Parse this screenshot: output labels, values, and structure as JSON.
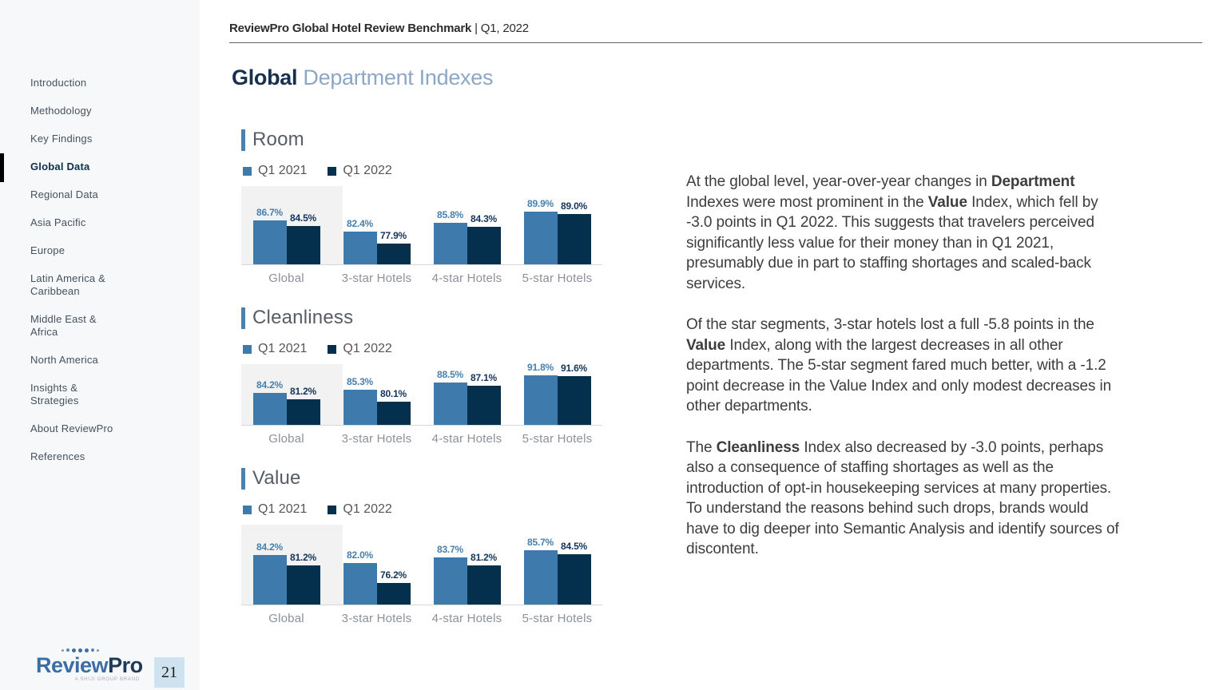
{
  "header": {
    "title": "ReviewPro Global Hotel Review Benchmark ",
    "subtitle": "| Q1, 2022"
  },
  "page_title": {
    "bold": "Global",
    "light": " Department Indexes"
  },
  "sidebar": {
    "items": [
      {
        "label": "Introduction",
        "active": false
      },
      {
        "label": "Methodology",
        "active": false
      },
      {
        "label": "Key Findings",
        "active": false
      },
      {
        "label": "Global Data",
        "active": true
      },
      {
        "label": "Regional Data",
        "active": false
      },
      {
        "label": "Asia Pacific",
        "active": false
      },
      {
        "label": "Europe",
        "active": false
      },
      {
        "label": "Latin America & Caribbean",
        "active": false
      },
      {
        "label": "Middle East & Africa",
        "active": false
      },
      {
        "label": "North America",
        "active": false
      },
      {
        "label": "Insights & Strategies",
        "active": false
      },
      {
        "label": "About ReviewPro",
        "active": false
      },
      {
        "label": "References",
        "active": false
      }
    ]
  },
  "logo": {
    "review": "Review",
    "pro": "Pro",
    "tagline": "A SHIJI GROUP BRAND"
  },
  "page_number": "21",
  "colors": {
    "bar_q1_2021": "#3E7BAC",
    "bar_q1_2022": "#04304D",
    "label_q1_2021": "#4680AE",
    "label_q1_2022": "#14355B",
    "highlight": "#F2F2F2",
    "accent_bar": "#4A81AD",
    "title_dark": "#16304E",
    "title_light": "#8CA7C6"
  },
  "chart_data": [
    {
      "type": "bar",
      "title": "Room",
      "categories": [
        "Global",
        "3-star Hotels",
        "4-star Hotels",
        "5-star Hotels"
      ],
      "series": [
        {
          "name": "Q1 2021",
          "values": [
            86.7,
            82.4,
            85.8,
            89.9
          ]
        },
        {
          "name": "Q1 2022",
          "values": [
            84.5,
            77.9,
            84.3,
            89.0
          ]
        }
      ],
      "unit": "%",
      "ylim": [
        70,
        95
      ],
      "grid": false,
      "legend_position": "top",
      "value_labels": true,
      "highlight_category": "Global"
    },
    {
      "type": "bar",
      "title": "Cleanliness",
      "categories": [
        "Global",
        "3-star Hotels",
        "4-star Hotels",
        "5-star Hotels"
      ],
      "series": [
        {
          "name": "Q1 2021",
          "values": [
            84.2,
            85.3,
            88.5,
            91.8
          ]
        },
        {
          "name": "Q1 2022",
          "values": [
            81.2,
            80.1,
            87.1,
            91.6
          ]
        }
      ],
      "unit": "%",
      "ylim": [
        70,
        95
      ],
      "grid": false,
      "legend_position": "top",
      "value_labels": true,
      "highlight_category": "Global"
    },
    {
      "type": "bar",
      "title": "Value",
      "categories": [
        "Global",
        "3-star Hotels",
        "4-star Hotels",
        "5-star Hotels"
      ],
      "series": [
        {
          "name": "Q1 2021",
          "values": [
            84.2,
            82.0,
            83.7,
            85.7
          ]
        },
        {
          "name": "Q1 2022",
          "values": [
            81.2,
            76.2,
            81.2,
            84.5
          ]
        }
      ],
      "unit": "%",
      "ylim": [
        70,
        95
      ],
      "grid": false,
      "legend_position": "top",
      "value_labels": true,
      "highlight_category": "Global"
    }
  ],
  "article": {
    "paragraphs": [
      [
        {
          "text": "At the global level, year-over-year changes in "
        },
        {
          "text": "Department",
          "bold": true
        },
        {
          "text": " Indexes were most prominent in the "
        },
        {
          "text": "Value",
          "bold": true
        },
        {
          "text": " Index, which fell by -3.0 points in Q1 2022. This suggests that travelers perceived significantly less value for their money than in Q1 2021, presumably due in part to staffing shortages and scaled-back services."
        }
      ],
      [
        {
          "text": "Of the star segments, 3-star hotels lost a full -5.8 points in the "
        },
        {
          "text": "Value",
          "bold": true
        },
        {
          "text": " Index, along with the largest decreases in all other departments. The 5-star segment fared much better, with a -1.2 point decrease in the Value Index and only modest decreases in other departments."
        }
      ],
      [
        {
          "text": "The "
        },
        {
          "text": "Cleanliness",
          "bold": true
        },
        {
          "text": " Index also decreased by -3.0 points, perhaps also a consequence of staffing shortages as well as the introduction of opt-in housekeeping services at many properties. To understand the reasons behind such drops, brands would have to dig deeper into Semantic Analysis and identify sources of discontent."
        }
      ]
    ]
  }
}
